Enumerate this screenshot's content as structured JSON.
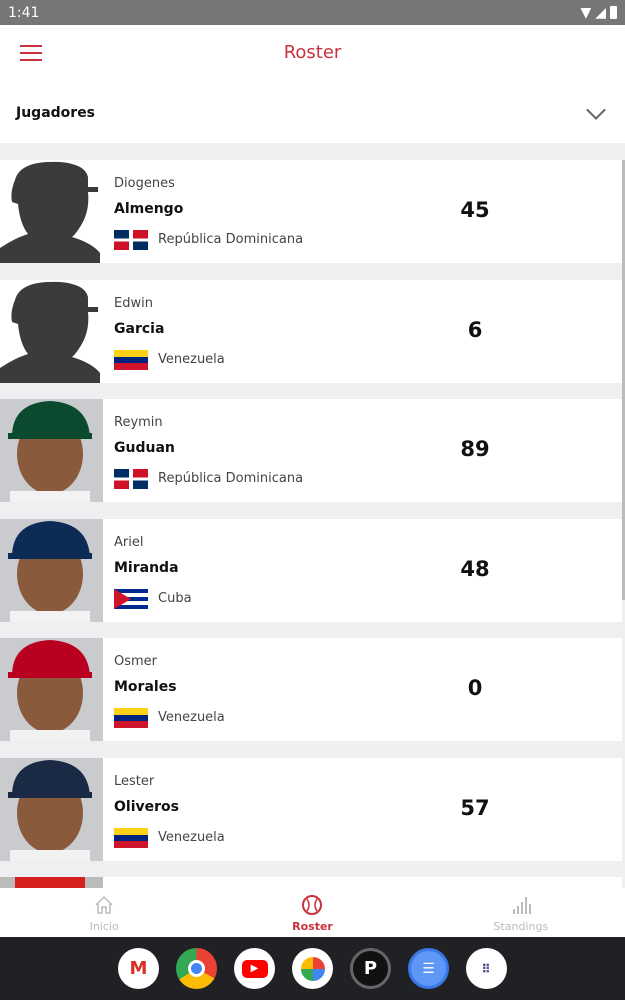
{
  "status": {
    "time": "1:41"
  },
  "header": {
    "title": "Roster"
  },
  "filter": {
    "selected": "Jugadores"
  },
  "players": [
    {
      "first": "Diogenes",
      "last": "Almengo",
      "country": "República Dominicana",
      "flag": "do",
      "number": "45",
      "photo": "silhouette"
    },
    {
      "first": "Edwin",
      "last": "Garcia",
      "country": "Venezuela",
      "flag": "ve",
      "number": "6",
      "photo": "silhouette"
    },
    {
      "first": "Reymin",
      "last": "Guduan",
      "country": "República Dominicana",
      "flag": "do",
      "number": "89",
      "photo": "athletics-cap"
    },
    {
      "first": "Ariel",
      "last": "Miranda",
      "country": "Cuba",
      "flag": "cu",
      "number": "48",
      "photo": "mariners-cap"
    },
    {
      "first": "Osmer",
      "last": "Morales",
      "country": "Venezuela",
      "flag": "ve",
      "number": "0",
      "photo": "angels-cap"
    },
    {
      "first": "Lester",
      "last": "Oliveros",
      "country": "Venezuela",
      "flag": "ve",
      "number": "57",
      "photo": "navy-cap"
    }
  ],
  "nav": [
    {
      "label": "Inicio",
      "icon": "home-icon"
    },
    {
      "label": "Roster",
      "icon": "baseball-icon",
      "active": true
    },
    {
      "label": "Standings",
      "icon": "bar-chart-icon"
    }
  ],
  "dock": [
    "gmail",
    "chrome",
    "youtube",
    "photos",
    "app-p",
    "messages",
    "app-drawer"
  ],
  "colors": {
    "accent": "#c8323e"
  }
}
